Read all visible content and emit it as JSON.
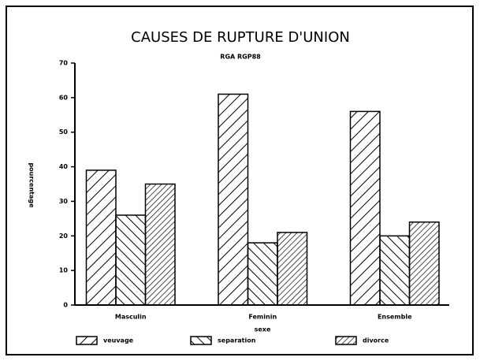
{
  "chart_data": {
    "type": "bar",
    "title": "CAUSES DE RUPTURE D'UNION",
    "subtitle": "RGA RGP88",
    "ylabel": "pourcentage",
    "xlabel": "sexe",
    "categories": [
      "Masculin",
      "Feminin",
      "Ensemble"
    ],
    "series": [
      {
        "name": "veuvage",
        "color": "#000000",
        "values": [
          39,
          61,
          56
        ]
      },
      {
        "name": "separation",
        "color": "#000000",
        "values": [
          26,
          18,
          20
        ]
      },
      {
        "name": "divorce",
        "color": "#000000",
        "values": [
          35,
          21,
          24
        ]
      }
    ],
    "ylim": [
      0,
      70
    ],
    "yticks": [
      0,
      10,
      20,
      30,
      40,
      50,
      60,
      70
    ]
  }
}
